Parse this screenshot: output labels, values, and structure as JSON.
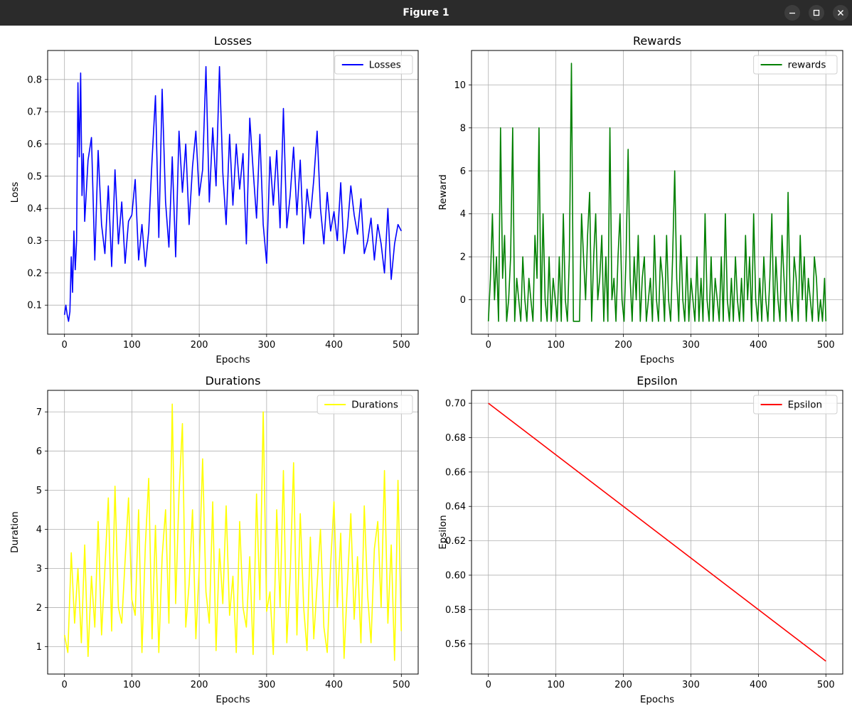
{
  "window": {
    "title": "Figure 1",
    "buttons": [
      "minimize-icon",
      "maximize-icon",
      "close-icon"
    ]
  },
  "chart_data": [
    {
      "type": "line",
      "title": "Losses",
      "xlabel": "Epochs",
      "ylabel": "Loss",
      "xlim": [
        -25,
        525
      ],
      "ylim": [
        0.01,
        0.89
      ],
      "xticks": [
        0,
        100,
        200,
        300,
        400,
        500
      ],
      "yticks": [
        0.1,
        0.2,
        0.3,
        0.4,
        0.5,
        0.6,
        0.7,
        0.8
      ],
      "ytick_labels": [
        "0.1",
        "0.2",
        "0.3",
        "0.4",
        "0.5",
        "0.6",
        "0.7",
        "0.8"
      ],
      "grid": true,
      "legend": "top-right",
      "series": [
        {
          "name": "Losses",
          "color": "#0000ff",
          "x": [
            0,
            2,
            4,
            6,
            8,
            10,
            12,
            14,
            16,
            18,
            20,
            22,
            24,
            26,
            28,
            30,
            35,
            40,
            45,
            50,
            55,
            60,
            65,
            70,
            75,
            80,
            85,
            90,
            95,
            100,
            105,
            110,
            115,
            120,
            125,
            130,
            135,
            140,
            145,
            150,
            155,
            160,
            165,
            170,
            175,
            180,
            185,
            190,
            195,
            200,
            205,
            210,
            215,
            220,
            225,
            230,
            235,
            240,
            245,
            250,
            255,
            260,
            265,
            270,
            275,
            280,
            285,
            290,
            295,
            300,
            305,
            310,
            315,
            320,
            325,
            330,
            335,
            340,
            345,
            350,
            355,
            360,
            365,
            370,
            375,
            380,
            385,
            390,
            395,
            400,
            405,
            410,
            415,
            420,
            425,
            430,
            435,
            440,
            445,
            450,
            455,
            460,
            465,
            470,
            475,
            480,
            485,
            490,
            495,
            500
          ],
          "y": [
            0.07,
            0.1,
            0.07,
            0.05,
            0.08,
            0.25,
            0.14,
            0.33,
            0.21,
            0.3,
            0.79,
            0.56,
            0.82,
            0.44,
            0.57,
            0.36,
            0.55,
            0.62,
            0.24,
            0.58,
            0.35,
            0.26,
            0.47,
            0.22,
            0.52,
            0.29,
            0.42,
            0.23,
            0.36,
            0.38,
            0.49,
            0.24,
            0.35,
            0.22,
            0.33,
            0.55,
            0.75,
            0.31,
            0.77,
            0.42,
            0.28,
            0.56,
            0.25,
            0.64,
            0.45,
            0.6,
            0.35,
            0.53,
            0.64,
            0.44,
            0.52,
            0.84,
            0.42,
            0.65,
            0.47,
            0.84,
            0.51,
            0.35,
            0.63,
            0.41,
            0.6,
            0.46,
            0.57,
            0.29,
            0.68,
            0.52,
            0.37,
            0.63,
            0.35,
            0.23,
            0.56,
            0.41,
            0.58,
            0.34,
            0.71,
            0.34,
            0.44,
            0.59,
            0.38,
            0.55,
            0.29,
            0.46,
            0.37,
            0.49,
            0.64,
            0.4,
            0.29,
            0.45,
            0.33,
            0.39,
            0.3,
            0.48,
            0.26,
            0.34,
            0.47,
            0.38,
            0.32,
            0.43,
            0.26,
            0.3,
            0.37,
            0.24,
            0.35,
            0.29,
            0.2,
            0.4,
            0.18,
            0.29,
            0.35,
            0.33
          ]
        }
      ]
    },
    {
      "type": "line",
      "title": "Rewards",
      "xlabel": "Epochs",
      "ylabel": "Reward",
      "xlim": [
        -25,
        525
      ],
      "ylim": [
        -1.6,
        11.6
      ],
      "xticks": [
        0,
        100,
        200,
        300,
        400,
        500
      ],
      "yticks": [
        0,
        2,
        4,
        6,
        8,
        10
      ],
      "ytick_labels": [
        "0",
        "2",
        "4",
        "6",
        "8",
        "10"
      ],
      "grid": true,
      "legend": "top-right",
      "series": [
        {
          "name": "rewards",
          "color": "#008000",
          "x": [
            0,
            3,
            6,
            9,
            12,
            15,
            18,
            21,
            24,
            27,
            30,
            33,
            36,
            39,
            42,
            45,
            48,
            51,
            54,
            57,
            60,
            63,
            66,
            69,
            72,
            75,
            78,
            81,
            84,
            87,
            90,
            93,
            96,
            99,
            102,
            105,
            108,
            111,
            114,
            117,
            120,
            123,
            126,
            129,
            130,
            132,
            135,
            138,
            141,
            144,
            147,
            150,
            153,
            156,
            159,
            162,
            165,
            168,
            171,
            174,
            177,
            180,
            183,
            186,
            189,
            192,
            195,
            198,
            201,
            204,
            207,
            210,
            213,
            216,
            219,
            222,
            225,
            228,
            231,
            234,
            237,
            240,
            243,
            246,
            249,
            252,
            255,
            258,
            261,
            264,
            267,
            270,
            273,
            276,
            279,
            282,
            285,
            288,
            291,
            294,
            297,
            300,
            303,
            306,
            309,
            312,
            315,
            318,
            321,
            324,
            327,
            330,
            333,
            336,
            339,
            342,
            345,
            348,
            351,
            354,
            357,
            360,
            363,
            366,
            369,
            372,
            375,
            378,
            381,
            384,
            387,
            390,
            393,
            396,
            399,
            402,
            405,
            408,
            411,
            414,
            417,
            420,
            423,
            426,
            429,
            432,
            435,
            438,
            441,
            444,
            447,
            450,
            453,
            456,
            459,
            462,
            465,
            468,
            471,
            474,
            477,
            480,
            483,
            486,
            489,
            492,
            495,
            498,
            500
          ],
          "y": [
            -1,
            1,
            4,
            0,
            2,
            -1,
            8,
            1,
            3,
            -1,
            0,
            2,
            8,
            -1,
            1,
            0,
            -1,
            2,
            0,
            -1,
            1,
            0,
            -1,
            3,
            1,
            8,
            -1,
            4,
            0,
            -1,
            2,
            -1,
            1,
            0,
            -1,
            2,
            -1,
            4,
            0,
            -1,
            2,
            11,
            -1,
            -1,
            -1,
            -1,
            -1,
            4,
            2,
            0,
            3,
            5,
            -1,
            2,
            4,
            0,
            1,
            3,
            -1,
            2,
            -1,
            8,
            0,
            1,
            -1,
            2,
            4,
            0,
            -1,
            2,
            7,
            1,
            -1,
            2,
            0,
            3,
            -1,
            1,
            2,
            -1,
            0,
            1,
            -1,
            3,
            0,
            -1,
            2,
            1,
            -1,
            3,
            0,
            -1,
            2,
            6,
            1,
            -1,
            3,
            0,
            -1,
            2,
            -1,
            1,
            0,
            -1,
            2,
            -1,
            1,
            -1,
            4,
            0,
            -1,
            2,
            -1,
            1,
            0,
            -1,
            2,
            -1,
            4,
            0,
            -1,
            1,
            -1,
            2,
            0,
            -1,
            1,
            -1,
            3,
            0,
            2,
            -1,
            4,
            0,
            -1,
            1,
            -1,
            2,
            0,
            -1,
            1,
            4,
            -1,
            2,
            0,
            -1,
            3,
            1,
            -1,
            5,
            0,
            -1,
            2,
            1,
            -1,
            3,
            0,
            2,
            -1,
            1,
            0,
            -1,
            2,
            1,
            -1,
            0,
            -1,
            1,
            -1
          ]
        }
      ]
    },
    {
      "type": "line",
      "title": "Durations",
      "xlabel": "Epochs",
      "ylabel": "Duration",
      "xlim": [
        -25,
        525
      ],
      "ylim": [
        0.3,
        7.55
      ],
      "xticks": [
        0,
        100,
        200,
        300,
        400,
        500
      ],
      "yticks": [
        1,
        2,
        3,
        4,
        5,
        6,
        7
      ],
      "ytick_labels": [
        "1",
        "2",
        "3",
        "4",
        "5",
        "6",
        "7"
      ],
      "grid": true,
      "legend": "top-right",
      "series": [
        {
          "name": "Durations",
          "color": "#ffff00",
          "x": [
            0,
            5,
            10,
            15,
            20,
            25,
            30,
            35,
            40,
            45,
            50,
            55,
            60,
            65,
            70,
            75,
            80,
            85,
            90,
            95,
            100,
            105,
            110,
            115,
            120,
            125,
            130,
            135,
            140,
            145,
            150,
            155,
            160,
            165,
            170,
            175,
            180,
            185,
            190,
            195,
            200,
            205,
            210,
            215,
            220,
            225,
            230,
            235,
            240,
            245,
            250,
            255,
            260,
            265,
            270,
            275,
            280,
            285,
            290,
            295,
            300,
            305,
            310,
            315,
            320,
            325,
            330,
            335,
            340,
            345,
            350,
            355,
            360,
            365,
            370,
            375,
            380,
            385,
            390,
            395,
            400,
            405,
            410,
            415,
            420,
            425,
            430,
            435,
            440,
            445,
            450,
            455,
            460,
            465,
            470,
            475,
            480,
            485,
            490,
            495,
            500
          ],
          "y": [
            1.3,
            0.85,
            3.4,
            1.6,
            3.0,
            1.1,
            3.6,
            0.75,
            2.8,
            1.5,
            4.2,
            1.3,
            3.0,
            4.8,
            1.4,
            5.1,
            2.0,
            1.6,
            3.2,
            4.8,
            2.2,
            1.8,
            4.5,
            0.85,
            3.6,
            5.3,
            1.2,
            4.1,
            0.85,
            3.3,
            4.5,
            1.6,
            7.2,
            2.1,
            4.9,
            6.7,
            1.5,
            2.6,
            4.5,
            1.2,
            3.0,
            5.8,
            2.4,
            1.6,
            4.7,
            0.9,
            3.5,
            2.1,
            4.6,
            1.8,
            2.8,
            0.85,
            4.2,
            2.0,
            1.5,
            3.3,
            0.8,
            4.9,
            2.2,
            7.0,
            1.9,
            2.4,
            0.8,
            4.5,
            2.0,
            5.5,
            1.1,
            2.8,
            5.7,
            1.3,
            4.4,
            2.0,
            0.9,
            3.8,
            1.2,
            2.6,
            4.0,
            1.5,
            0.85,
            3.1,
            4.7,
            2.0,
            3.9,
            0.7,
            2.6,
            4.4,
            1.7,
            3.3,
            1.1,
            4.6,
            2.3,
            1.1,
            3.5,
            4.2,
            2.0,
            5.5,
            1.6,
            3.6,
            0.65,
            5.25,
            1.4
          ]
        }
      ]
    },
    {
      "type": "line",
      "title": "Epsilon",
      "xlabel": "Epochs",
      "ylabel": "Epsilon",
      "xlim": [
        -25,
        525
      ],
      "ylim": [
        0.5425,
        0.7075
      ],
      "xticks": [
        0,
        100,
        200,
        300,
        400,
        500
      ],
      "yticks": [
        0.56,
        0.58,
        0.6,
        0.62,
        0.64,
        0.66,
        0.68,
        0.7
      ],
      "ytick_labels": [
        "0.56",
        "0.58",
        "0.60",
        "0.62",
        "0.64",
        "0.66",
        "0.68",
        "0.70"
      ],
      "grid": true,
      "legend": "top-right",
      "series": [
        {
          "name": "Epsilon",
          "color": "#ff0000",
          "x": [
            0,
            500
          ],
          "y": [
            0.7,
            0.55
          ]
        }
      ]
    }
  ]
}
